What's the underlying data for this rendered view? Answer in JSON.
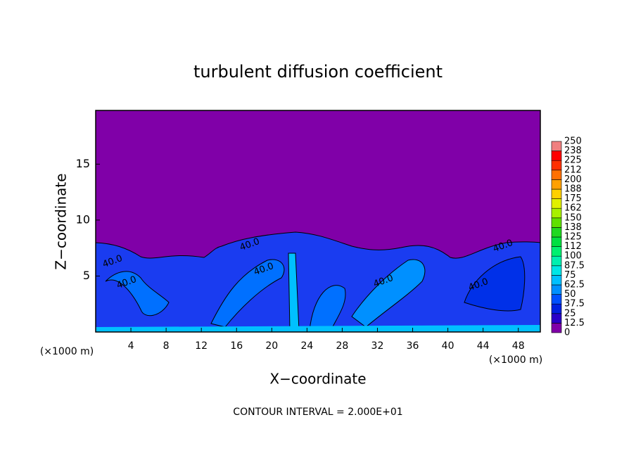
{
  "chart_data": {
    "type": "contour",
    "title": "turbulent diffusion coefficient",
    "xlabel": "X−coordinate",
    "ylabel": "Z−coordinate",
    "x_unit": "(×1000 m)",
    "x_unit_right": "(×1000 m)",
    "note": "CONTOUR INTERVAL = 2.000E+01",
    "xlim": [
      0,
      50.5
    ],
    "xticks": [
      4,
      8,
      12,
      16,
      20,
      24,
      28,
      32,
      36,
      40,
      44,
      48
    ],
    "ylim": [
      0,
      19.8
    ],
    "yticks": [
      5,
      10,
      15
    ],
    "contour_labels": [
      "40.0",
      "40.0",
      "40.0",
      "40.0",
      "40.0",
      "40.0",
      "40.0"
    ],
    "colorbar": {
      "levels": [
        0,
        12.5,
        25,
        37.5,
        50,
        62.5,
        75,
        87.5,
        100,
        112,
        125,
        138,
        150,
        162,
        175,
        188,
        200,
        212,
        225,
        238,
        250
      ],
      "colors": [
        "#8000a8",
        "#2a00c8",
        "#0020e0",
        "#0050ff",
        "#0090ff",
        "#00c0ff",
        "#00e6e6",
        "#00f0b0",
        "#00f070",
        "#00e040",
        "#20d820",
        "#60e000",
        "#a8f000",
        "#e0f000",
        "#ffd000",
        "#ffa000",
        "#ff7000",
        "#ff3000",
        "#ff0000",
        "#f08080"
      ]
    }
  }
}
